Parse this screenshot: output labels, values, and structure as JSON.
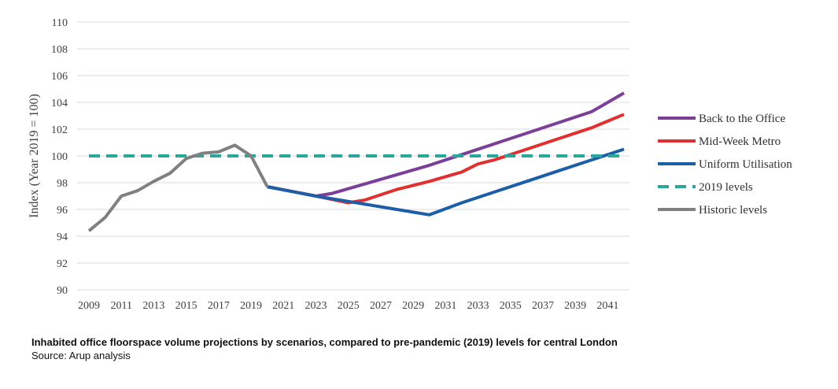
{
  "chart_data": {
    "type": "line",
    "title": "",
    "xlabel": "",
    "ylabel": "Index (Year 2019 = 100)",
    "xlim": [
      2009,
      2042
    ],
    "ylim": [
      90,
      110
    ],
    "yticks": [
      90,
      92,
      94,
      96,
      98,
      100,
      102,
      104,
      106,
      108,
      110
    ],
    "xticks": [
      2009,
      2011,
      2013,
      2015,
      2017,
      2019,
      2021,
      2023,
      2025,
      2027,
      2029,
      2031,
      2033,
      2035,
      2037,
      2039,
      2041
    ],
    "grid": "horizontal",
    "legend_position": "right",
    "series": [
      {
        "name": "Back to the Office",
        "color": "#7b3f98",
        "style": "solid",
        "points": [
          [
            2020,
            97.7
          ],
          [
            2023,
            97.0
          ],
          [
            2024,
            97.2
          ],
          [
            2026,
            97.9
          ],
          [
            2028,
            98.6
          ],
          [
            2030,
            99.3
          ],
          [
            2032,
            100.1
          ],
          [
            2034,
            100.9
          ],
          [
            2036,
            101.7
          ],
          [
            2038,
            102.5
          ],
          [
            2040,
            103.3
          ],
          [
            2042,
            104.7
          ]
        ]
      },
      {
        "name": "Mid-Week Metro",
        "color": "#e03030",
        "style": "solid",
        "points": [
          [
            2020,
            97.7
          ],
          [
            2023,
            97.0
          ],
          [
            2025,
            96.5
          ],
          [
            2026,
            96.7
          ],
          [
            2028,
            97.5
          ],
          [
            2030,
            98.1
          ],
          [
            2032,
            98.8
          ],
          [
            2033,
            99.4
          ],
          [
            2034,
            99.7
          ],
          [
            2036,
            100.5
          ],
          [
            2038,
            101.3
          ],
          [
            2040,
            102.1
          ],
          [
            2042,
            103.1
          ]
        ]
      },
      {
        "name": "Uniform Utilisation",
        "color": "#1d5ea8",
        "style": "solid",
        "points": [
          [
            2020,
            97.7
          ],
          [
            2023,
            97.0
          ],
          [
            2025,
            96.6
          ],
          [
            2027,
            96.2
          ],
          [
            2030,
            95.6
          ],
          [
            2032,
            96.5
          ],
          [
            2034,
            97.3
          ],
          [
            2036,
            98.1
          ],
          [
            2038,
            98.9
          ],
          [
            2040,
            99.7
          ],
          [
            2042,
            100.5
          ]
        ]
      },
      {
        "name": "2019 levels",
        "color": "#2aa79b",
        "style": "dashed",
        "points": [
          [
            2009,
            100
          ],
          [
            2042,
            100
          ]
        ]
      },
      {
        "name": "Historic levels",
        "color": "#808080",
        "style": "solid",
        "points": [
          [
            2009,
            94.4
          ],
          [
            2010,
            95.4
          ],
          [
            2011,
            97.0
          ],
          [
            2012,
            97.4
          ],
          [
            2013,
            98.1
          ],
          [
            2014,
            98.7
          ],
          [
            2015,
            99.8
          ],
          [
            2016,
            100.2
          ],
          [
            2017,
            100.3
          ],
          [
            2018,
            100.8
          ],
          [
            2019,
            100.0
          ],
          [
            2020,
            97.7
          ]
        ]
      }
    ]
  },
  "caption": {
    "title": "Inhabited office floorspace volume projections by scenarios, compared to pre-pandemic (2019) levels for central London",
    "source": "Source: Arup analysis"
  }
}
